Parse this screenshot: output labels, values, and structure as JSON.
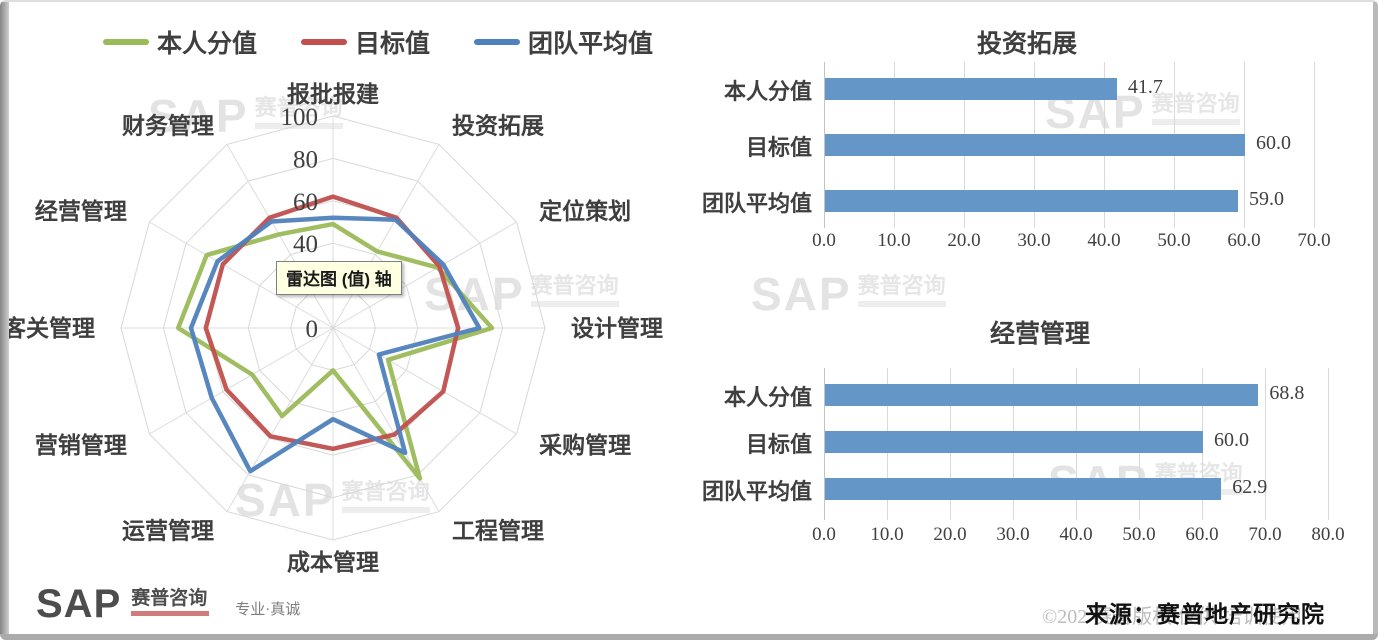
{
  "chart_data": [
    {
      "type": "radar",
      "tooltip": "雷达图 (值) 轴",
      "max": 100,
      "tick_labels": [
        "100",
        "80",
        "60",
        "40",
        "20",
        "0"
      ],
      "grid": true,
      "legend_position": "top",
      "categories": [
        "报批报建",
        "投资拓展",
        "定位策划",
        "设计管理",
        "采购管理",
        "工程管理",
        "成本管理",
        "运营管理",
        "营销管理",
        "客关管理",
        "经营管理",
        "财务管理"
      ],
      "series": [
        {
          "name": "本人分值",
          "color": "#9BBB59",
          "values": [
            49,
            41.7,
            57,
            75,
            30,
            82,
            20,
            48,
            44,
            73,
            68.8,
            51
          ]
        },
        {
          "name": "目标值",
          "color": "#C0504D",
          "values": [
            62,
            60,
            58,
            59,
            60,
            58,
            57,
            59,
            58,
            60,
            60,
            60
          ]
        },
        {
          "name": "团队平均值",
          "color": "#4F81BD",
          "values": [
            52,
            59,
            60,
            69,
            25,
            68,
            43,
            78,
            66,
            67,
            62.9,
            58
          ]
        }
      ]
    },
    {
      "type": "bar",
      "orientation": "horizontal",
      "title": "投资拓展",
      "categories": [
        "本人分值",
        "目标值",
        "团队平均值"
      ],
      "values": [
        41.7,
        60.0,
        59.0
      ],
      "value_labels": [
        "41.7",
        "60.0",
        "59.0"
      ],
      "xlim": [
        0,
        70
      ],
      "x_ticks": [
        "0.0",
        "10.0",
        "20.0",
        "30.0",
        "40.0",
        "50.0",
        "60.0",
        "70.0"
      ],
      "bar_color": "#6596C8",
      "grid": true
    },
    {
      "type": "bar",
      "orientation": "horizontal",
      "title": "经营管理",
      "categories": [
        "本人分值",
        "目标值",
        "团队平均值"
      ],
      "values": [
        68.8,
        60.0,
        62.9
      ],
      "value_labels": [
        "68.8",
        "60.0",
        "62.9"
      ],
      "xlim": [
        0,
        80
      ],
      "x_ticks": [
        "0.0",
        "10.0",
        "20.0",
        "30.0",
        "40.0",
        "50.0",
        "60.0",
        "70.0",
        "80.0"
      ],
      "bar_color": "#6596C8",
      "grid": true
    }
  ],
  "branding": {
    "watermark_sap": "SAP",
    "watermark_cn": "赛普咨询",
    "logo_sap": "SAP",
    "logo_cn": "赛普咨询",
    "slogan": "专业·真诚"
  },
  "footer": {
    "copyright": "©202 赛普版权 仅供 培训使用",
    "source": "来源：赛普地产研究院"
  }
}
